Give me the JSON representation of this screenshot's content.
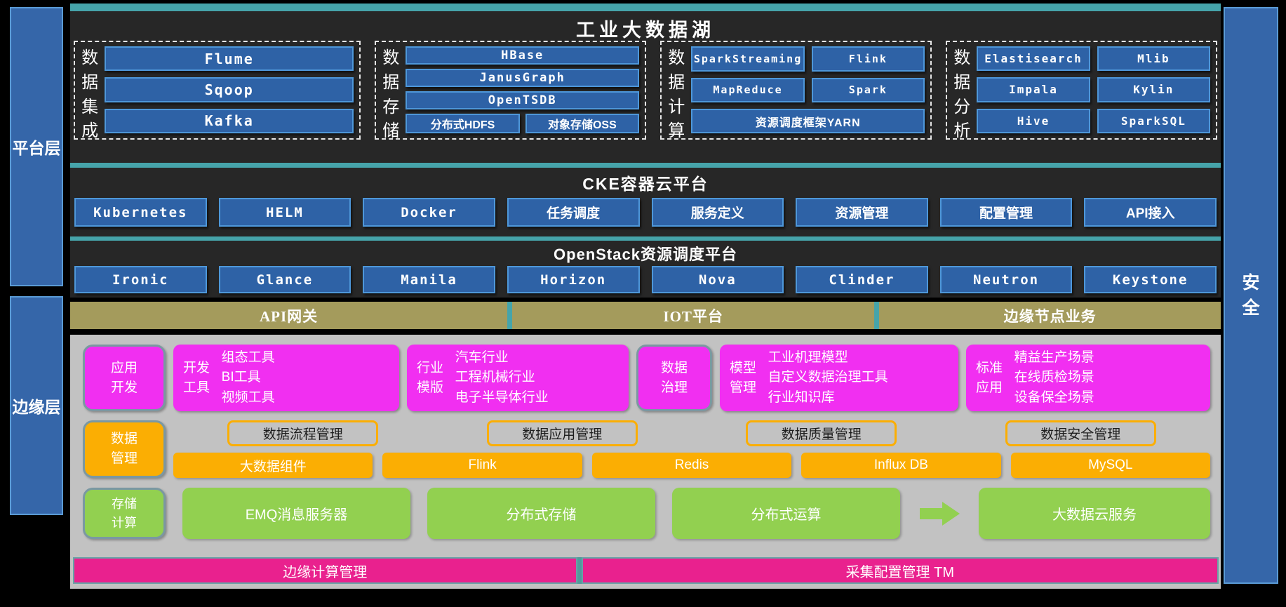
{
  "colors": {
    "teal_accent": "#46A4AA",
    "dark_panel": "#272727",
    "blue_box": "#2E62A6",
    "blue_border": "#4E97D9",
    "olive": "#A49B5C",
    "gray_panel": "#C2C2C2",
    "magenta": "#F12FF1",
    "orange": "#FBAE03",
    "green": "#92D050",
    "pink": "#E9218E"
  },
  "sidebar_left": {
    "platform": "平台层",
    "edge": "边缘层"
  },
  "sidebar_right": {
    "security": "安全"
  },
  "data_lake": {
    "title": "工业大数据湖",
    "groups": [
      {
        "label": "数据集成",
        "items": [
          "Flume",
          "Sqoop",
          "Kafka"
        ]
      },
      {
        "label": "数据存储",
        "items": [
          "HBase",
          "JanusGraph",
          "OpenTSDB"
        ],
        "bottom": [
          "分布式HDFS",
          "对象存储OSS"
        ]
      },
      {
        "label": "数据计算",
        "grid": [
          "SparkStreaming",
          "Flink",
          "MapReduce",
          "Spark"
        ],
        "full": "资源调度框架YARN"
      },
      {
        "label": "数据分析",
        "grid": [
          "Elastisearch",
          "Mlib",
          "Impala",
          "Kylin",
          "Hive",
          "SparkSQL"
        ]
      }
    ]
  },
  "cke": {
    "title": "CKE容器云平台",
    "items": [
      "Kubernetes",
      "HELM",
      "Docker",
      "任务调度",
      "服务定义",
      "资源管理",
      "配置管理",
      "API接入"
    ]
  },
  "openstack": {
    "title": "OpenStack资源调度平台",
    "items": [
      "Ironic",
      "Glance",
      "Manila",
      "Horizon",
      "Nova",
      "Clinder",
      "Neutron",
      "Keystone"
    ]
  },
  "gateway": [
    "API网关",
    "IOT平台",
    "边缘节点业务"
  ],
  "edge": {
    "app_row": {
      "badge_app_dev": "应用开发",
      "dev_tools": {
        "label": "开发工具",
        "lines": [
          "组态工具",
          "BI工具",
          "视频工具"
        ]
      },
      "industry": {
        "label": "行业模版",
        "lines": [
          "汽车行业",
          "工程机械行业",
          "电子半导体行业"
        ]
      },
      "badge_data_gov": "数据治理",
      "model": {
        "label": "模型管理",
        "lines": [
          "工业机理模型",
          "自定义数据治理工具",
          "行业知识库"
        ]
      },
      "standard": {
        "label": "标准应用",
        "lines": [
          "精益生产场景",
          "在线质检场景",
          "设备保全场景"
        ]
      }
    },
    "data_row": {
      "badge": "数据管理",
      "outlined": [
        "数据流程管理",
        "数据应用管理",
        "数据质量管理",
        "数据安全管理"
      ],
      "solid": [
        "大数据组件",
        "Flink",
        "Redis",
        "Influx DB",
        "MySQL"
      ]
    },
    "compute_row": {
      "badge": "存储计算",
      "items": [
        "EMQ消息服务器",
        "分布式存储",
        "分布式运算"
      ],
      "target": "大数据云服务"
    },
    "bottom_row": [
      "边缘计算管理",
      "采集配置管理 TM"
    ]
  }
}
